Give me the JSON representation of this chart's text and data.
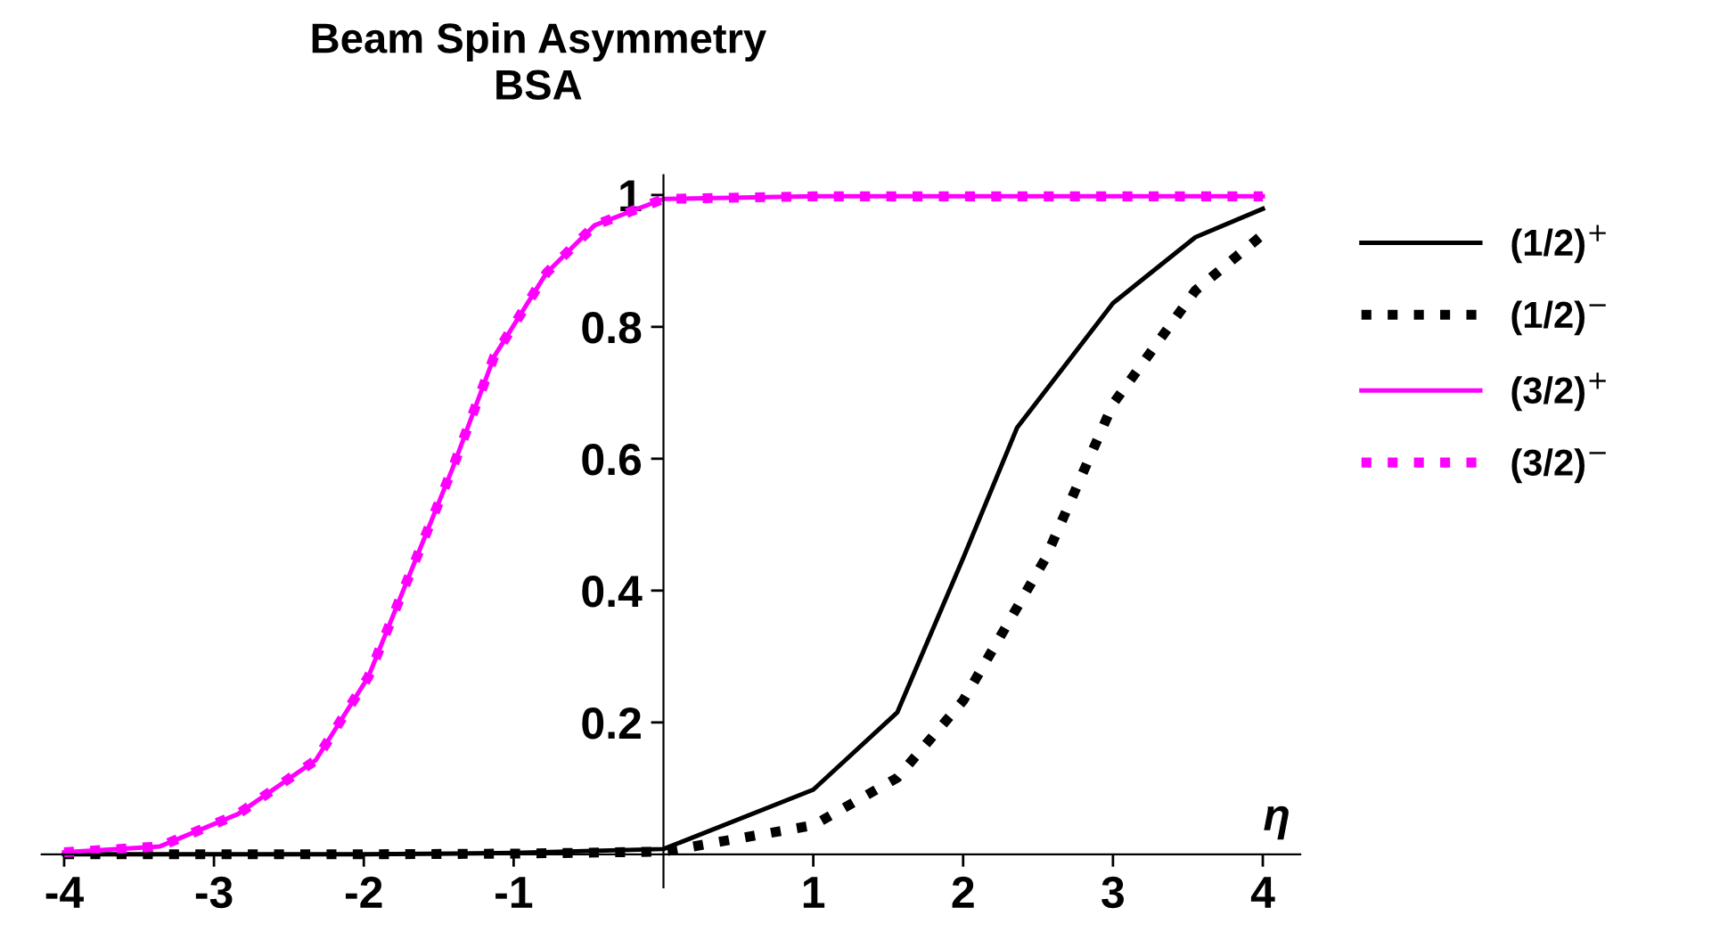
{
  "chart_data": {
    "type": "line",
    "title": "Beam Spin Asymmetry",
    "subtitle": "BSA",
    "xlabel": "η",
    "xlim": [
      -4.15,
      4.25
    ],
    "ylim": [
      -0.05,
      1.03
    ],
    "xticks": [
      -4,
      -3,
      -2,
      -1,
      1,
      2,
      3,
      4
    ],
    "yticks": [
      0.2,
      0.4,
      0.6,
      0.8,
      1
    ],
    "grid": false,
    "legend": "right",
    "marker": "none",
    "series": [
      {
        "name": "(1/2)$^{+}$",
        "color": "#000000",
        "line_style": "solid",
        "x": [
          -4,
          -3,
          -2,
          -1,
          0,
          1,
          1.56,
          2,
          2.36,
          3,
          3.55,
          4
        ],
        "values": [
          0,
          0,
          0,
          0.002,
          0.008,
          0.098,
          0.215,
          0.449,
          0.647,
          0.836,
          0.936,
          0.979
        ]
      },
      {
        "name": "(1/2)$^{−}$",
        "color": "#000000",
        "line_style": "dotted",
        "x": [
          -4,
          -3,
          -2,
          -1,
          0,
          1,
          1.56,
          2,
          2.55,
          3,
          3.55,
          4
        ],
        "values": [
          0,
          0,
          0,
          0.001,
          0.004,
          0.044,
          0.116,
          0.233,
          0.449,
          0.683,
          0.855,
          0.94
        ]
      },
      {
        "name": "(3/2)$^{+}$",
        "color": "#ff00ff",
        "line_style": "solid",
        "x": [
          -4,
          -3.36,
          -2.84,
          -2.32,
          -1.97,
          -1.65,
          -1.41,
          -1.13,
          -0.78,
          -0.46,
          0,
          1,
          2,
          3,
          4
        ],
        "values": [
          0.003,
          0.012,
          0.061,
          0.143,
          0.269,
          0.449,
          0.584,
          0.755,
          0.882,
          0.954,
          0.994,
          0.998,
          0.998,
          0.998,
          0.998
        ]
      },
      {
        "name": "(3/2)$^{−}$",
        "color": "#ff00ff",
        "line_style": "dotted",
        "x": [
          -4,
          -3.36,
          -2.84,
          -2.32,
          -1.97,
          -1.65,
          -1.41,
          -1.13,
          -0.78,
          -0.46,
          0,
          1,
          2,
          3,
          4
        ],
        "values": [
          0.003,
          0.012,
          0.061,
          0.143,
          0.269,
          0.449,
          0.584,
          0.755,
          0.882,
          0.954,
          0.994,
          0.998,
          0.998,
          0.998,
          0.998
        ]
      }
    ]
  }
}
